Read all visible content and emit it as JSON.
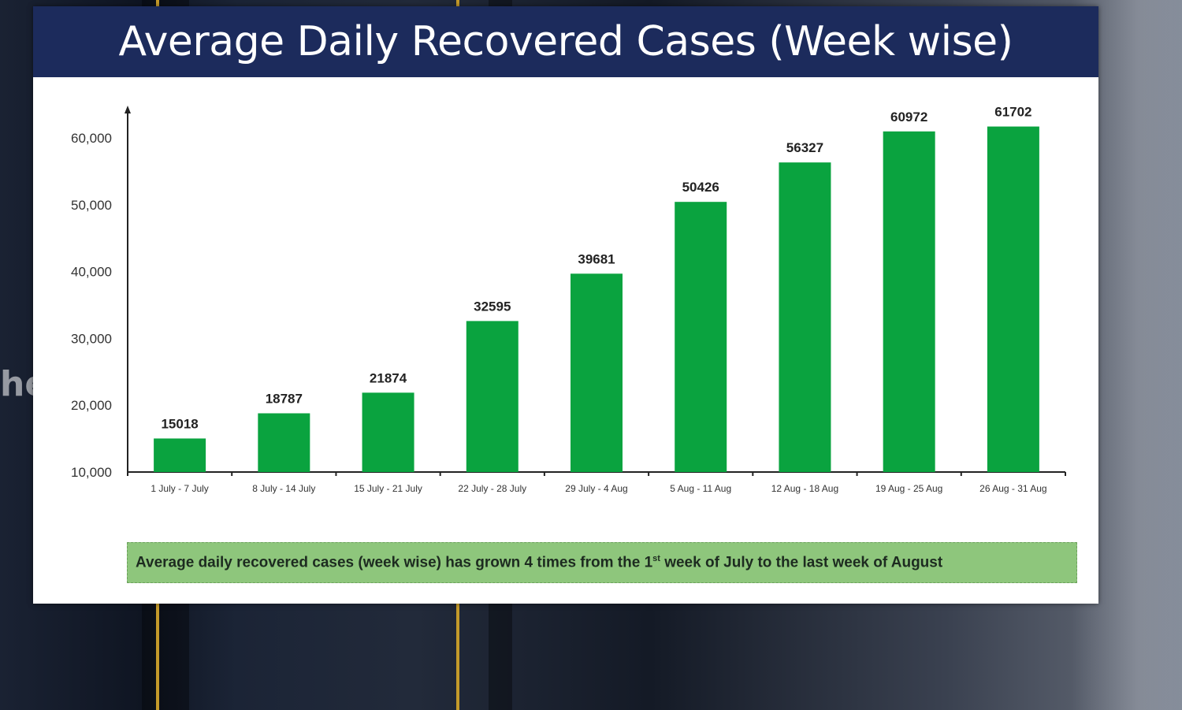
{
  "side_text": "he",
  "chart_data": {
    "type": "bar",
    "title": "Average Daily Recovered Cases (Week wise)",
    "categories": [
      "1 July - 7 July",
      "8 July - 14 July",
      "15 July - 21 July",
      "22 July - 28 July",
      "29 July - 4 Aug",
      "5 Aug - 11 Aug",
      "12 Aug - 18 Aug",
      "19 Aug - 25 Aug",
      "26 Aug - 31 Aug"
    ],
    "values": [
      15018,
      18787,
      21874,
      32595,
      39681,
      50426,
      56327,
      60972,
      61702
    ],
    "data_labels": [
      "15018",
      "18787",
      "21874",
      "32595",
      "39681",
      "50426",
      "56327",
      "60972",
      "61702"
    ],
    "yticks": [
      10000,
      20000,
      30000,
      40000,
      50000,
      60000
    ],
    "ytick_labels": [
      "10,000",
      "20,000",
      "30,000",
      "40,000",
      "50,000",
      "60,000"
    ],
    "ylim": [
      10000,
      60000
    ],
    "xlabel": "",
    "ylabel": "",
    "grid": false,
    "legend": "none",
    "bar_color": "#0aa33f"
  },
  "caption": {
    "before": "Average daily recovered cases (week wise) has grown 4 times from the 1",
    "sup": "st",
    "after": " week of July to the last week of August"
  }
}
